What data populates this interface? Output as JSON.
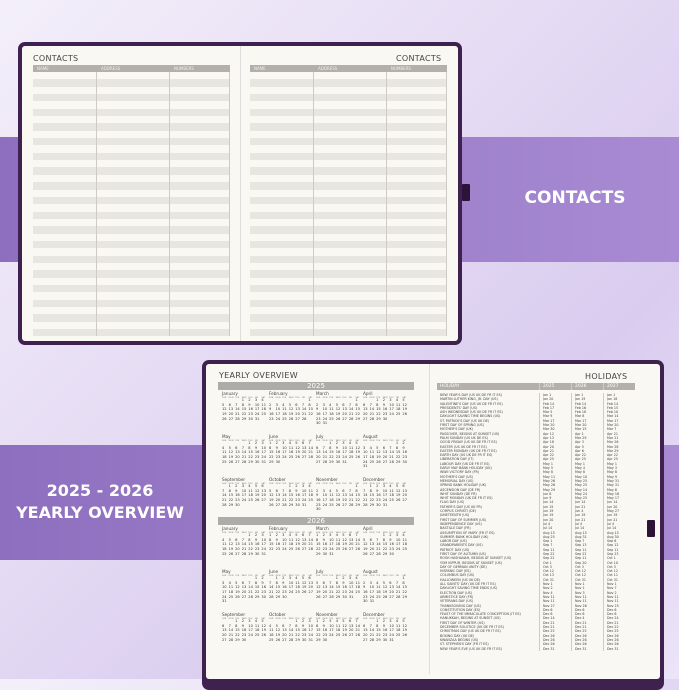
{
  "banners": {
    "contacts": "CONTACTS",
    "yearly_line1": "2025 - 2026",
    "yearly_line2": "YEARLY OVERVIEW"
  },
  "contacts": {
    "left_title": "CONTACTS",
    "right_title": "CONTACTS",
    "columns": [
      "NAME",
      "ADDRESS",
      "NUMBERS"
    ]
  },
  "yearly": {
    "title": "YEARLY OVERVIEW",
    "years": [
      2025,
      2026
    ],
    "months": [
      "January",
      "February",
      "March",
      "April",
      "May",
      "June",
      "July",
      "August",
      "September",
      "October",
      "November",
      "December"
    ],
    "weekdays": [
      "SUN",
      "MON",
      "TUE",
      "WED",
      "THU",
      "FRI",
      "SAT"
    ]
  },
  "holidays": {
    "title": "HOLIDAYS",
    "columns": [
      "HOLIDAY",
      "2025",
      "2026",
      "2027"
    ],
    "rows": [
      [
        "NEW YEAR'S DAY (US UK DE FR IT ES)",
        "Jan 1",
        "Jan 1",
        "Jan 1"
      ],
      [
        "MARTIN LUTHER KING, JR. DAY (US)",
        "Jan 20",
        "Jan 19",
        "Jan 18"
      ],
      [
        "VALENTINE'S DAY (US UK DE FR IT ES)",
        "Feb 14",
        "Feb 14",
        "Feb 14"
      ],
      [
        "PRESIDENTS' DAY (US)",
        "Feb 17",
        "Feb 16",
        "Feb 15"
      ],
      [
        "ASH WEDNESDAY (US UK DE FR IT ES)",
        "Mar 5",
        "Feb 18",
        "Feb 10"
      ],
      [
        "DAYLIGHT SAVING TIME BEGINS (US)",
        "Mar 9",
        "Mar 8",
        "Mar 14"
      ],
      [
        "ST. PATRICK'S DAY (US UK DE)",
        "Mar 17",
        "Mar 17",
        "Mar 17"
      ],
      [
        "FIRST DAY OF SPRING (US)",
        "Mar 20",
        "Mar 20",
        "Mar 20"
      ],
      [
        "MOTHER'S DAY (UK)",
        "Mar 30",
        "Mar 15",
        "Mar 7"
      ],
      [
        "PASSOVER, BEGINS AT SUNSET (US)",
        "Apr 12",
        "Apr 1",
        "Apr 21"
      ],
      [
        "PALM SUNDAY (US UK DE ES)",
        "Apr 13",
        "Mar 29",
        "Mar 21"
      ],
      [
        "GOOD FRIDAY (US UK DE FR IT ES)",
        "Apr 18",
        "Apr 3",
        "Mar 26"
      ],
      [
        "EASTER (US UK DE FR IT ES)",
        "Apr 20",
        "Apr 5",
        "Mar 28"
      ],
      [
        "EASTER MONDAY (UK DE FR IT ES)",
        "Apr 21",
        "Apr 6",
        "Mar 29"
      ],
      [
        "EARTH DAY (US UK DE FR IT ES)",
        "Apr 22",
        "Apr 22",
        "Apr 22"
      ],
      [
        "LIBERATION DAY (IT)",
        "Apr 25",
        "Apr 25",
        "Apr 25"
      ],
      [
        "LABOUR DAY (UK DE FR IT ES)",
        "May 1",
        "May 1",
        "May 1"
      ],
      [
        "EARLY MAY BANK HOLIDAY (UK)",
        "May 5",
        "May 4",
        "May 3"
      ],
      [
        "WWII VICTORY DAY (FR)",
        "May 8",
        "May 8",
        "May 8"
      ],
      [
        "MOTHER'S DAY (US)",
        "May 11",
        "May 10",
        "May 9"
      ],
      [
        "MEMORIAL DAY (US)",
        "May 26",
        "May 25",
        "May 31"
      ],
      [
        "SPRING BANK HOLIDAY (UK)",
        "May 26",
        "May 25",
        "May 31"
      ],
      [
        "ASCENSION DAY (DE FR)",
        "May 29",
        "May 14",
        "May 6"
      ],
      [
        "WHIT SUNDAY (DE FR)",
        "Jun 8",
        "May 24",
        "May 16"
      ],
      [
        "WHIT MONDAY (UK DE FR IT ES)",
        "Jun 9",
        "May 25",
        "May 17"
      ],
      [
        "FLAG DAY (US)",
        "Jun 14",
        "Jun 14",
        "Jun 14"
      ],
      [
        "FATHER'S DAY (US UK FR)",
        "Jun 15",
        "Jun 21",
        "Jun 20"
      ],
      [
        "CORPUS CHRISTI (DE)",
        "Jun 19",
        "Jun 4",
        "May 27"
      ],
      [
        "JUNETEENTH (US)",
        "Jun 19",
        "Jun 19",
        "Jun 19"
      ],
      [
        "FIRST DAY OF SUMMER (US)",
        "Jun 20",
        "Jun 21",
        "Jun 21"
      ],
      [
        "INDEPENDENCE DAY (US)",
        "Jul 4",
        "Jul 4",
        "Jul 4"
      ],
      [
        "BASTILLE DAY (FR)",
        "Jul 14",
        "Jul 14",
        "Jul 14"
      ],
      [
        "ASSUMPTION OF MARY (FR IT ES)",
        "Aug 15",
        "Aug 15",
        "Aug 15"
      ],
      [
        "SUMMER BANK HOLIDAY (UK)",
        "Aug 25",
        "Aug 31",
        "Aug 30"
      ],
      [
        "LABOR DAY (US)",
        "Sep 1",
        "Sep 7",
        "Sep 6"
      ],
      [
        "GRANDPARENTS DAY (US)",
        "Sep 7",
        "Sep 13",
        "Sep 12"
      ],
      [
        "PATRIOT DAY (US)",
        "Sep 11",
        "Sep 11",
        "Sep 11"
      ],
      [
        "FIRST DAY OF AUTUMN (US)",
        "Sep 22",
        "Sep 22",
        "Sep 23"
      ],
      [
        "ROSH HASHANAH, BEGINS AT SUNSET (US)",
        "Sep 22",
        "Sep 11",
        "Oct 1"
      ],
      [
        "YOM KIPPUR, BEGINS AT SUNSET (US)",
        "Oct 1",
        "Sep 20",
        "Oct 10"
      ],
      [
        "DAY OF GERMAN UNITY (DE)",
        "Oct 3",
        "Oct 3",
        "Oct 3"
      ],
      [
        "HISPANIC DAY (ES)",
        "Oct 12",
        "Oct 12",
        "Oct 12"
      ],
      [
        "COLUMBUS DAY (US)",
        "Oct 13",
        "Oct 12",
        "Oct 11"
      ],
      [
        "HALLOWEEN (US UK DE)",
        "Oct 31",
        "Oct 31",
        "Oct 31"
      ],
      [
        "ALL SAINTS' DAY (UK DE FR IT ES)",
        "Nov 1",
        "Nov 1",
        "Nov 1"
      ],
      [
        "DAYLIGHT SAVING TIME ENDS (US)",
        "Nov 2",
        "Nov 1",
        "Nov 7"
      ],
      [
        "ELECTION DAY (US)",
        "Nov 4",
        "Nov 3",
        "Nov 2"
      ],
      [
        "ARMISTICE DAY (FR)",
        "Nov 11",
        "Nov 11",
        "Nov 11"
      ],
      [
        "VETERANS DAY (US)",
        "Nov 11",
        "Nov 11",
        "Nov 11"
      ],
      [
        "THANKSGIVING DAY (US)",
        "Nov 27",
        "Nov 26",
        "Nov 25"
      ],
      [
        "CONSTITUTION DAY (ES)",
        "Dec 6",
        "Dec 6",
        "Dec 6"
      ],
      [
        "FEAST OF THE IMMACULATE CONCEPTION (IT ES)",
        "Dec 8",
        "Dec 8",
        "Dec 8"
      ],
      [
        "HANUKKAH, BEGINS AT SUNSET (US)",
        "Dec 14",
        "Dec 4",
        "Dec 24"
      ],
      [
        "FIRST DAY OF WINTER (US)",
        "Dec 21",
        "Dec 21",
        "Dec 21"
      ],
      [
        "DECEMBER SOLSTICE (UK DE FR IT ES)",
        "Dec 21",
        "Dec 21",
        "Dec 22"
      ],
      [
        "CHRISTMAS DAY (US UK DE FR IT ES)",
        "Dec 25",
        "Dec 25",
        "Dec 25"
      ],
      [
        "BOXING DAY (UK DE)",
        "Dec 26",
        "Dec 26",
        "Dec 26"
      ],
      [
        "KWANZAA BEGINS (US)",
        "Dec 26",
        "Dec 26",
        "Dec 26"
      ],
      [
        "ST. STEPHEN'S DAY (FR IT ES)",
        "Dec 26",
        "Dec 26",
        "Dec 26"
      ],
      [
        "NEW YEAR'S EVE (US UK DE FR IT ES)",
        "Dec 31",
        "Dec 31",
        "Dec 31"
      ]
    ]
  },
  "colors": {
    "cover": "#3f2150",
    "band": "#9b7fc8",
    "page": "#faf8f3",
    "header_gray": "#b3b0ab"
  }
}
